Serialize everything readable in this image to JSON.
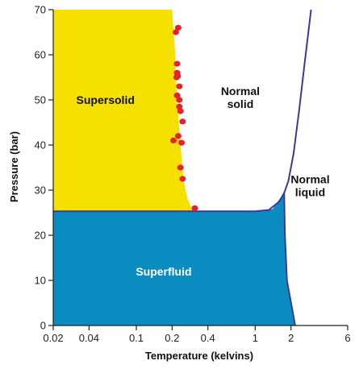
{
  "chart_data": {
    "type": "scatter",
    "xlabel": "Temperature (kelvins)",
    "ylabel": "Pressure (bar)",
    "xscale": "log",
    "xlim": [
      0.02,
      6
    ],
    "ylim": [
      0,
      70
    ],
    "xticks": [
      {
        "value": 0.02,
        "label": "0.02"
      },
      {
        "value": 0.04,
        "label": "0.04"
      },
      {
        "value": 0.1,
        "label": "0.1"
      },
      {
        "value": 0.2,
        "label": "0.2"
      },
      {
        "value": 0.4,
        "label": "0.4"
      },
      {
        "value": 1,
        "label": "1"
      },
      {
        "value": 2,
        "label": "2"
      },
      {
        "value": 6,
        "label": "6"
      }
    ],
    "yticks": [
      0,
      10,
      20,
      30,
      40,
      50,
      60,
      70
    ],
    "grid": false,
    "colors": {
      "supersolid": "#f5e000",
      "superfluid": "#0a8cc0",
      "boundary": "#3a3a9a",
      "points": "#e8202a",
      "supersolid_label": "#111111",
      "superfluid_label": "#ffffff",
      "normal_label": "#111111"
    },
    "regions": [
      {
        "name": "Supersolid",
        "label": [
          "Supersolid"
        ],
        "label_at": [
          0.055,
          50
        ]
      },
      {
        "name": "Normal solid",
        "label": [
          "Normal",
          "solid"
        ],
        "label_at": [
          0.75,
          50.5
        ]
      },
      {
        "name": "Normal liquid",
        "label": [
          "Normal",
          "liquid"
        ],
        "label_at": [
          2.9,
          31
        ]
      },
      {
        "name": "Superfluid",
        "label": [
          "Superfluid"
        ],
        "label_at": [
          0.17,
          12
        ]
      }
    ],
    "supersolid_boundary": [
      [
        0.2,
        70
      ],
      [
        0.21,
        62
      ],
      [
        0.22,
        50
      ],
      [
        0.235,
        40
      ],
      [
        0.25,
        32
      ],
      [
        0.27,
        28
      ],
      [
        0.3,
        25.3
      ]
    ],
    "superfluid_boundary": [
      [
        0.02,
        25.3
      ],
      [
        1.0,
        25.3
      ],
      [
        1.4,
        25.8
      ],
      [
        1.75,
        29.5
      ],
      [
        1.78,
        20
      ],
      [
        1.85,
        10
      ],
      [
        2.17,
        0
      ]
    ],
    "melting_curve": [
      [
        0.02,
        25.3
      ],
      [
        0.6,
        25.3
      ],
      [
        1.0,
        25.3
      ],
      [
        1.3,
        25.6
      ],
      [
        1.6,
        27.5
      ],
      [
        1.76,
        29.5
      ],
      [
        1.9,
        32
      ],
      [
        2.1,
        38
      ],
      [
        2.35,
        48
      ],
      [
        2.6,
        58
      ],
      [
        2.95,
        70
      ]
    ],
    "points": [
      {
        "x": 0.225,
        "y": 66
      },
      {
        "x": 0.215,
        "y": 65
      },
      {
        "x": 0.22,
        "y": 58
      },
      {
        "x": 0.22,
        "y": 56
      },
      {
        "x": 0.223,
        "y": 55.3
      },
      {
        "x": 0.218,
        "y": 55
      },
      {
        "x": 0.23,
        "y": 53
      },
      {
        "x": 0.22,
        "y": 51
      },
      {
        "x": 0.23,
        "y": 50
      },
      {
        "x": 0.23,
        "y": 48.5
      },
      {
        "x": 0.235,
        "y": 47.5
      },
      {
        "x": 0.245,
        "y": 45.2
      },
      {
        "x": 0.225,
        "y": 42
      },
      {
        "x": 0.205,
        "y": 41
      },
      {
        "x": 0.24,
        "y": 40.5
      },
      {
        "x": 0.235,
        "y": 35
      },
      {
        "x": 0.245,
        "y": 32.5
      },
      {
        "x": 0.31,
        "y": 26
      }
    ]
  }
}
